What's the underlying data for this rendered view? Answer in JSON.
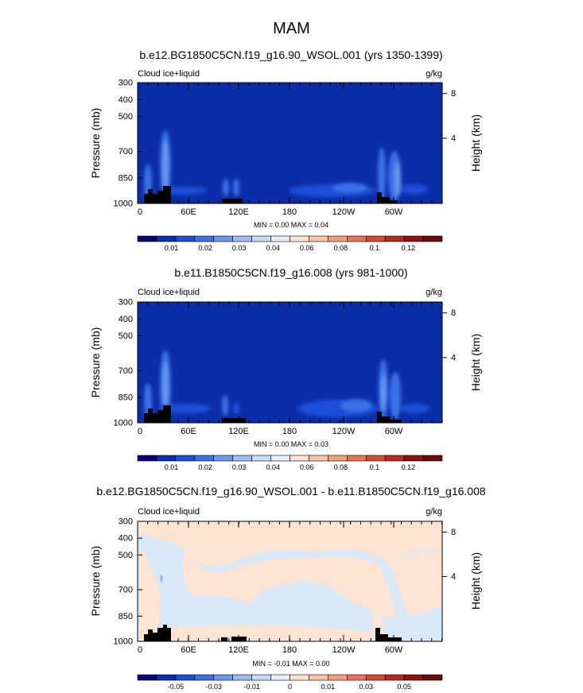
{
  "figure": {
    "title": "MAM"
  },
  "chart_data": [
    {
      "type": "heatmap",
      "title": "b.e12.BG1850C5CN.f19_g16.90_WSOL.001 (yrs 1350-1399)",
      "left_label": "Cloud ice+liquid",
      "right_label": "g/kg",
      "ylabel": "Pressure (mb)",
      "ylabel_right": "Height (km)",
      "y_ticks": [
        "300",
        "400",
        "500",
        "700",
        "850",
        "1000"
      ],
      "y_right_ticks": [
        "8",
        "4"
      ],
      "x_ticks": [
        "0",
        "60E",
        "120E",
        "180",
        "120W",
        "60W"
      ],
      "stats": "MIN =   0.00  MAX =   0.04",
      "colorbar_ticks": [
        "0.01",
        "0.02",
        "0.03",
        "0.04",
        "0.06",
        "0.08",
        "0.1",
        "0.12"
      ],
      "colorbar_colors": [
        "#08007a",
        "#0a2cb0",
        "#1f4fd8",
        "#3a6fe8",
        "#6b97ee",
        "#9dbcf2",
        "#c6dbf5",
        "#e6eff8",
        "#fbe4d3",
        "#f7c4a5",
        "#f2a07b",
        "#e8735a",
        "#d64a33",
        "#b82a1c",
        "#8f1210",
        "#6b0a0a"
      ],
      "background_color": "#0b2ea8"
    },
    {
      "type": "heatmap",
      "title": "b.e11.B1850C5CN.f19_g16.008 (yrs 981-1000)",
      "left_label": "Cloud ice+liquid",
      "right_label": "g/kg",
      "ylabel": "Pressure (mb)",
      "ylabel_right": "Height (km)",
      "y_ticks": [
        "300",
        "400",
        "500",
        "700",
        "850",
        "1000"
      ],
      "y_right_ticks": [
        "8",
        "4"
      ],
      "x_ticks": [
        "0",
        "60E",
        "120E",
        "180",
        "120W",
        "60W"
      ],
      "stats": "MIN =   0.00  MAX =   0.03",
      "colorbar_ticks": [
        "0.01",
        "0.02",
        "0.03",
        "0.04",
        "0.06",
        "0.08",
        "0.1",
        "0.12"
      ],
      "colorbar_colors": [
        "#08007a",
        "#0a2cb0",
        "#1f4fd8",
        "#3a6fe8",
        "#6b97ee",
        "#9dbcf2",
        "#c6dbf5",
        "#e6eff8",
        "#fbe4d3",
        "#f7c4a5",
        "#f2a07b",
        "#e8735a",
        "#d64a33",
        "#b82a1c",
        "#8f1210",
        "#6b0a0a"
      ],
      "background_color": "#0b2ea8"
    },
    {
      "type": "heatmap",
      "title": "b.e12.BG1850C5CN.f19_g16.90_WSOL.001 - b.e11.B1850C5CN.f19_g16.008",
      "left_label": "Cloud ice+liquid",
      "right_label": "g/kg",
      "ylabel": "Pressure (mb)",
      "ylabel_right": "Height (km)",
      "y_ticks": [
        "300",
        "400",
        "500",
        "700",
        "850",
        "1000"
      ],
      "y_right_ticks": [
        "8",
        "4"
      ],
      "x_ticks": [
        "0",
        "60E",
        "120E",
        "180",
        "120W",
        "60W"
      ],
      "stats": "MIN = -0.01  MAX =   0.00",
      "colorbar_ticks": [
        "-0.05",
        "-0.03",
        "-0.01",
        "0",
        "0.01",
        "0.03",
        "0.05"
      ],
      "colorbar_colors": [
        "#08007a",
        "#0a2cb0",
        "#1f4fd8",
        "#3a6fe8",
        "#6b97ee",
        "#9dbcf2",
        "#c6dbf5",
        "#e6eff8",
        "#fbe4d3",
        "#f7c4a5",
        "#f2a07b",
        "#e8735a",
        "#d64a33",
        "#b82a1c",
        "#8f1210",
        "#6b0a0a"
      ],
      "background_color": "#d9e9f8"
    }
  ]
}
